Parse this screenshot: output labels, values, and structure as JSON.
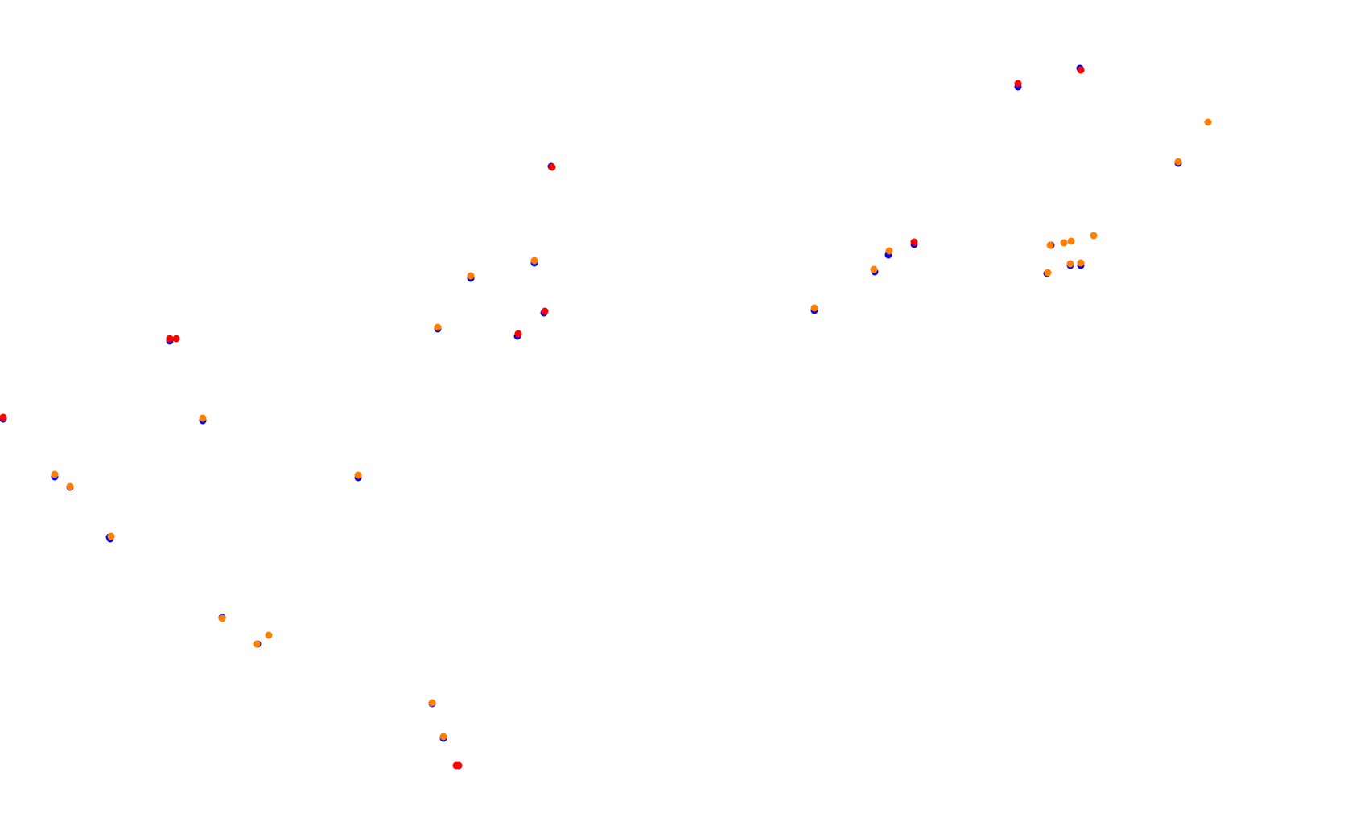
{
  "chart_data": {
    "type": "scatter",
    "title": "",
    "xlabel": "",
    "ylabel": "",
    "grid": false,
    "legend": "none",
    "colors": {
      "blue": "#0000ff",
      "red": "#ff0000",
      "orange": "#ff8000"
    },
    "series": [
      {
        "color": "#0000ff",
        "points": [
          [
            4,
            521
          ],
          [
            68,
            593
          ],
          [
            87,
            606
          ],
          [
            137,
            670
          ],
          [
            136,
            668
          ],
          [
            211,
            424
          ],
          [
            252,
            523
          ],
          [
            276,
            768
          ],
          [
            320,
            801
          ],
          [
            445,
            594
          ],
          [
            544,
            409
          ],
          [
            585,
            346
          ],
          [
            664,
            327
          ],
          [
            643,
            418
          ],
          [
            676,
            389
          ],
          [
            685,
            207
          ],
          [
            537,
            875
          ],
          [
            551,
            918
          ],
          [
            1012,
            386
          ],
          [
            1087,
            338
          ],
          [
            1104,
            317
          ],
          [
            1136,
            304
          ],
          [
            1265,
            108
          ],
          [
            1306,
            305
          ],
          [
            1301,
            340
          ],
          [
            1330,
            330
          ],
          [
            1343,
            330
          ],
          [
            1342,
            85
          ],
          [
            1464,
            203
          ]
        ]
      },
      {
        "color": "#ff0000",
        "points": [
          [
            4,
            519
          ],
          [
            211,
            421
          ],
          [
            219,
            421
          ],
          [
            644,
            415
          ],
          [
            677,
            387
          ],
          [
            686,
            208
          ],
          [
            567,
            952
          ],
          [
            570,
            952
          ],
          [
            1136,
            301
          ],
          [
            1265,
            104
          ],
          [
            1343,
            87
          ]
        ]
      },
      {
        "color": "#ff8000",
        "points": [
          [
            68,
            590
          ],
          [
            87,
            605
          ],
          [
            138,
            667
          ],
          [
            252,
            520
          ],
          [
            276,
            769
          ],
          [
            319,
            801
          ],
          [
            334,
            790
          ],
          [
            445,
            591
          ],
          [
            544,
            407
          ],
          [
            585,
            343
          ],
          [
            664,
            324
          ],
          [
            537,
            874
          ],
          [
            551,
            916
          ],
          [
            1012,
            383
          ],
          [
            1086,
            335
          ],
          [
            1105,
            312
          ],
          [
            1305,
            305
          ],
          [
            1322,
            302
          ],
          [
            1331,
            300
          ],
          [
            1359,
            293
          ],
          [
            1302,
            339
          ],
          [
            1330,
            328
          ],
          [
            1343,
            327
          ],
          [
            1464,
            201
          ],
          [
            1501,
            152
          ]
        ]
      }
    ]
  }
}
